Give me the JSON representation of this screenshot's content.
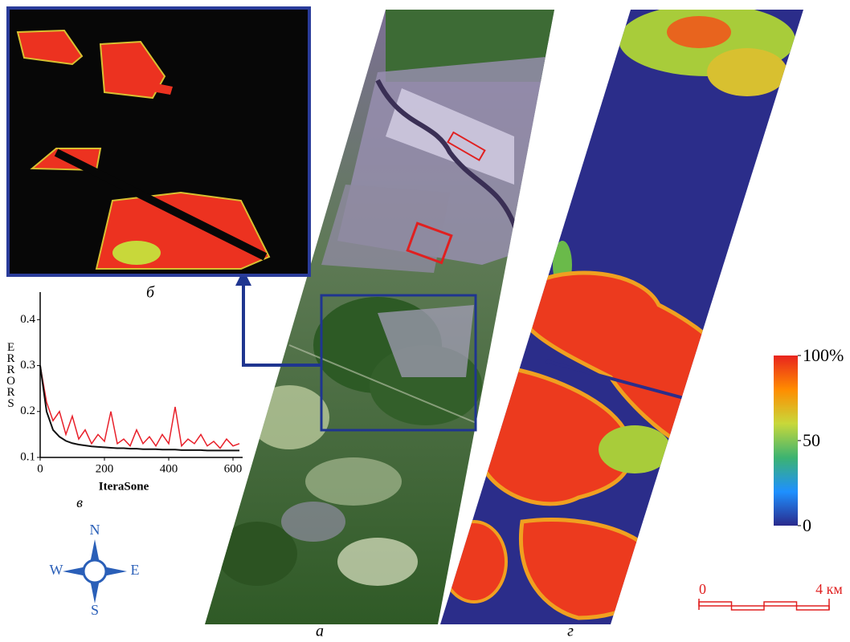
{
  "chart_data": {
    "type": "line",
    "xlabel": "IteraSone",
    "ylabel": "ERRORS",
    "x": [
      0,
      20,
      40,
      60,
      80,
      100,
      120,
      140,
      160,
      180,
      200,
      220,
      240,
      260,
      280,
      300,
      320,
      340,
      360,
      380,
      400,
      420,
      440,
      460,
      480,
      500,
      520,
      540,
      560,
      580,
      600,
      620
    ],
    "series": [
      {
        "color": "#e8202a",
        "values": [
          0.3,
          0.22,
          0.18,
          0.2,
          0.15,
          0.19,
          0.14,
          0.16,
          0.13,
          0.15,
          0.135,
          0.2,
          0.13,
          0.14,
          0.125,
          0.16,
          0.13,
          0.145,
          0.125,
          0.15,
          0.13,
          0.21,
          0.125,
          0.14,
          0.13,
          0.15,
          0.125,
          0.135,
          0.12,
          0.14,
          0.125,
          0.13
        ]
      },
      {
        "color": "#111111",
        "values": [
          0.3,
          0.2,
          0.16,
          0.145,
          0.136,
          0.131,
          0.128,
          0.126,
          0.124,
          0.123,
          0.122,
          0.121,
          0.12,
          0.12,
          0.119,
          0.119,
          0.118,
          0.118,
          0.118,
          0.117,
          0.117,
          0.117,
          0.116,
          0.116,
          0.116,
          0.116,
          0.115,
          0.115,
          0.115,
          0.115,
          0.115,
          0.115
        ]
      }
    ],
    "xlim": [
      0,
      630
    ],
    "xticks": [
      0,
      200,
      400,
      600
    ],
    "ylim": [
      0.1,
      0.46
    ],
    "yticks": [
      0.1,
      0.2,
      0.3,
      0.4
    ]
  },
  "panel_labels": {
    "a": "а",
    "b": "б",
    "v": "в",
    "g": "г"
  },
  "compass": {
    "n": "N",
    "s": "S",
    "w": "W",
    "e": "E"
  },
  "colorbar": {
    "range": [
      0,
      100
    ],
    "ticks": [
      {
        "value": 100,
        "label": "100%"
      },
      50,
      0
    ],
    "colors": [
      "#2a2a8c",
      "#1e90ff",
      "#3cb371",
      "#c8d83a",
      "#ff8c00",
      "#e8241e"
    ]
  },
  "scale_bar": {
    "range": [
      0,
      4
    ],
    "ticks": [
      0,
      {
        "value": 4,
        "label": "4 км"
      }
    ]
  }
}
